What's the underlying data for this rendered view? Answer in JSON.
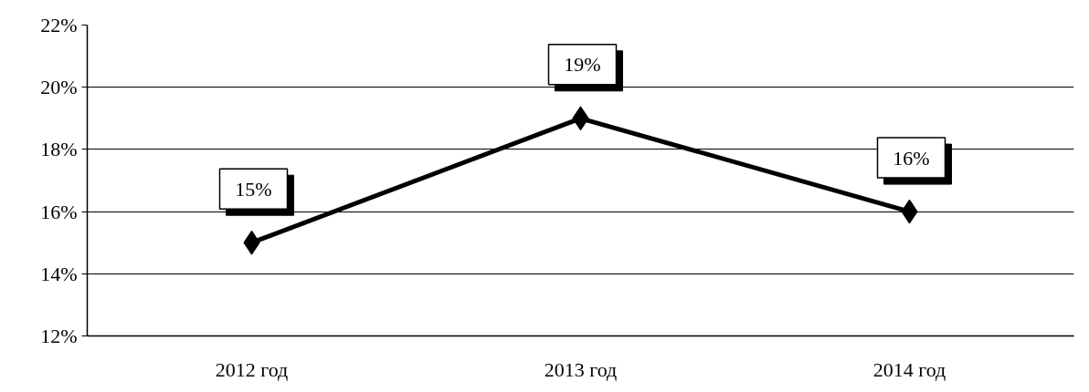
{
  "chart_data": {
    "type": "line",
    "categories": [
      "2012 год",
      "2013 год",
      "2014 год"
    ],
    "values": [
      15,
      19,
      16
    ],
    "value_labels": [
      "15%",
      "19%",
      "16%"
    ],
    "color": "#000000",
    "marker": "diamond",
    "line_style": "solid",
    "grid": "y",
    "ylim": [
      12,
      22
    ],
    "yticks": [
      {
        "value": 12,
        "label": "12%"
      },
      {
        "value": 14,
        "label": "14%"
      },
      {
        "value": 16,
        "label": "16%"
      },
      {
        "value": 18,
        "label": "18%"
      },
      {
        "value": 20,
        "label": "20%"
      },
      {
        "value": 22,
        "label": "22%"
      }
    ]
  }
}
